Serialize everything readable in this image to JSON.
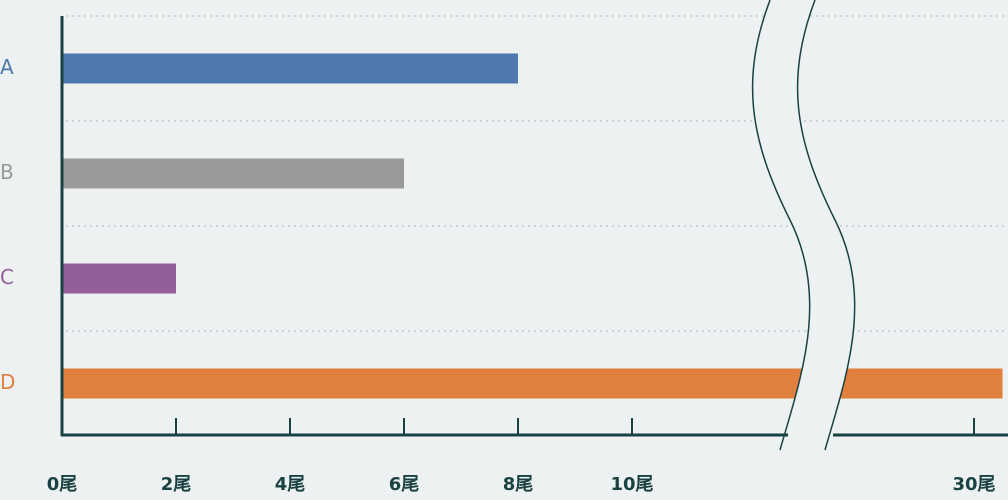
{
  "chart_data": {
    "type": "bar",
    "orientation": "horizontal",
    "categories": [
      "A",
      "B",
      "C",
      "D"
    ],
    "values": [
      8,
      6,
      2,
      30.5
    ],
    "colors": [
      "#4e79b0",
      "#999999",
      "#935f9b",
      "#e07f3e"
    ],
    "xlim": [
      0,
      30.6
    ],
    "x_break": [
      13,
      27
    ],
    "xticks": [
      {
        "value": 0,
        "label": "0尾"
      },
      {
        "value": 2,
        "label": "2尾"
      },
      {
        "value": 4,
        "label": "4尾"
      },
      {
        "value": 6,
        "label": "6尾"
      },
      {
        "value": 8,
        "label": "8尾"
      },
      {
        "value": 10,
        "label": "10尾"
      },
      {
        "value": 30,
        "label": "30尾"
      }
    ]
  }
}
